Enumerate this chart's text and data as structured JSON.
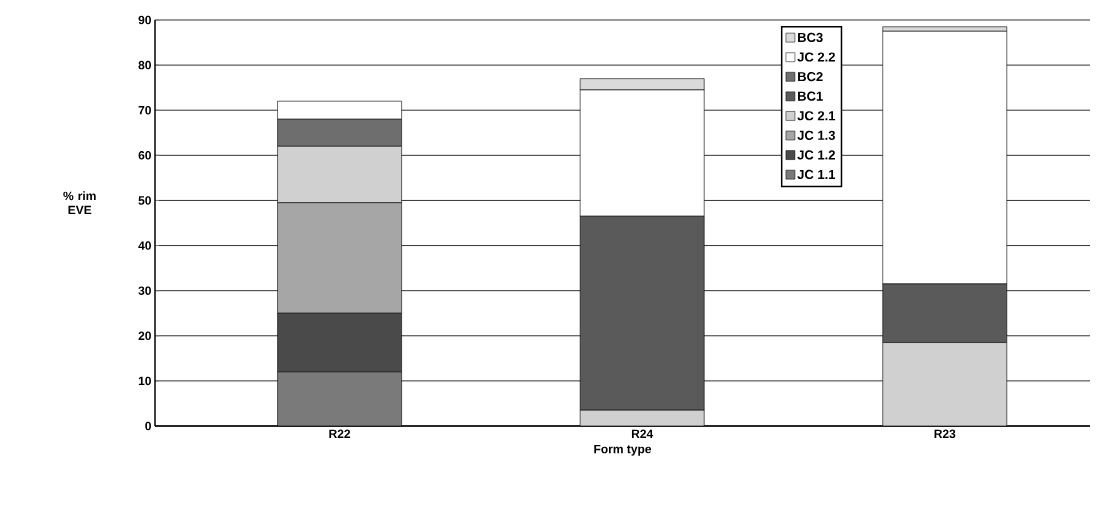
{
  "chart_data": {
    "type": "bar",
    "stacked": true,
    "xlabel": "Form type",
    "ylabel": "% rim EVE",
    "categories": [
      "R22",
      "R24",
      "R23"
    ],
    "series": [
      {
        "name": "JC 1.1",
        "color": "#7a7a7a",
        "values": [
          12,
          0,
          0
        ]
      },
      {
        "name": "JC 1.2",
        "color": "#4a4a4a",
        "values": [
          13,
          0,
          0
        ]
      },
      {
        "name": "JC 1.3",
        "color": "#a6a6a6",
        "values": [
          24.5,
          0,
          0
        ]
      },
      {
        "name": "JC 2.1",
        "color": "#d0d0d0",
        "values": [
          12.5,
          3.5,
          18.5
        ]
      },
      {
        "name": "BC1",
        "color": "#5a5a5a",
        "values": [
          0,
          43,
          13
        ]
      },
      {
        "name": "BC2",
        "color": "#6e6e6e",
        "values": [
          6,
          0,
          0
        ]
      },
      {
        "name": "JC 2.2",
        "color": "#ffffff",
        "values": [
          4,
          28,
          56
        ]
      },
      {
        "name": "BC3",
        "color": "#dadada",
        "values": [
          0,
          2.5,
          1
        ]
      }
    ],
    "ylim": [
      0,
      90
    ],
    "yticks": [
      0,
      10,
      20,
      30,
      40,
      50,
      60,
      70,
      80,
      90
    ],
    "grid": "y",
    "legend": "top right"
  }
}
